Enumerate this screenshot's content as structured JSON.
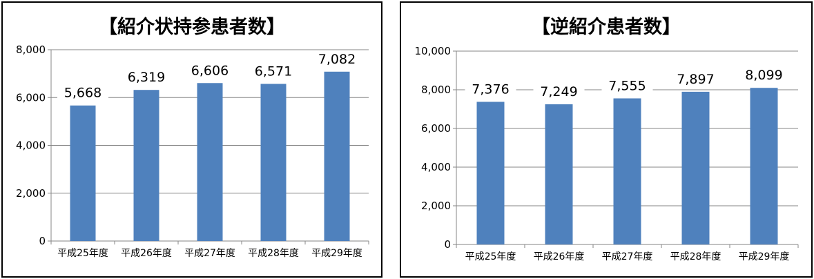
{
  "chart_data": [
    {
      "type": "bar",
      "title": "【紹介状持参患者数】",
      "categories": [
        "平成25年度",
        "平成26年度",
        "平成27年度",
        "平成28年度",
        "平成29年度"
      ],
      "values": [
        5668,
        6319,
        6606,
        6571,
        7082
      ],
      "value_labels": [
        "5,668",
        "6,319",
        "6,606",
        "6,571",
        "7,082"
      ],
      "yticks": [
        "0",
        "2,000",
        "4,000",
        "6,000",
        "8,000"
      ],
      "ylim": [
        0,
        8000
      ],
      "bar_color": "#4F81BD",
      "grid": true
    },
    {
      "type": "bar",
      "title": "【逆紹介患者数】",
      "categories": [
        "平成25年度",
        "平成26年度",
        "平成27年度",
        "平成28年度",
        "平成29年度"
      ],
      "values": [
        7376,
        7249,
        7555,
        7897,
        8099
      ],
      "value_labels": [
        "7,376",
        "7,249",
        "7,555",
        "7,897",
        "8,099"
      ],
      "yticks": [
        "0",
        "2,000",
        "4,000",
        "6,000",
        "8,000",
        "10,000"
      ],
      "ylim": [
        0,
        10000
      ],
      "bar_color": "#4F81BD",
      "grid": true
    }
  ]
}
